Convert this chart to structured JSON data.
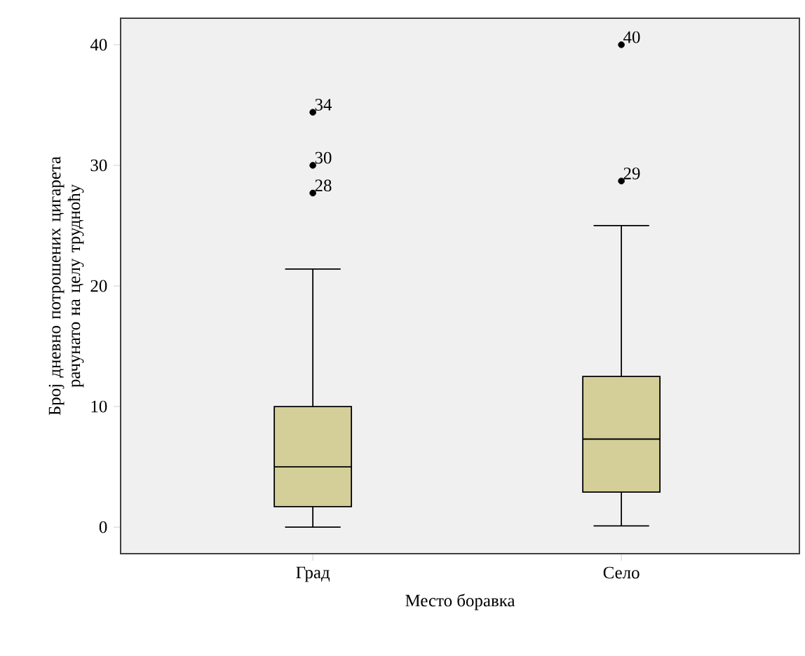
{
  "chart_data": {
    "type": "box",
    "categories": [
      "Град",
      "Село"
    ],
    "xlabel": "Место боравка",
    "ylabel": "Број дневно потрошених цигарета рачунато на целу трудноћу",
    "ylim": [
      -2.2,
      42.2
    ],
    "yticks": [
      0,
      10,
      20,
      30,
      40
    ],
    "grid": false,
    "series": [
      {
        "color": "#d4cf99",
        "boxes": [
          {
            "low": 0,
            "q1": 1.7,
            "median": 5,
            "q3": 10,
            "high": 21.4,
            "outliers": [
              34.4,
              30,
              27.7
            ]
          },
          {
            "low": 0.1,
            "q1": 2.9,
            "median": 7.3,
            "q3": 12.5,
            "high": 25,
            "outliers": [
              40,
              28.7
            ]
          }
        ]
      }
    ],
    "annotations": [
      "34",
      "30",
      "28",
      "40",
      "29"
    ]
  }
}
